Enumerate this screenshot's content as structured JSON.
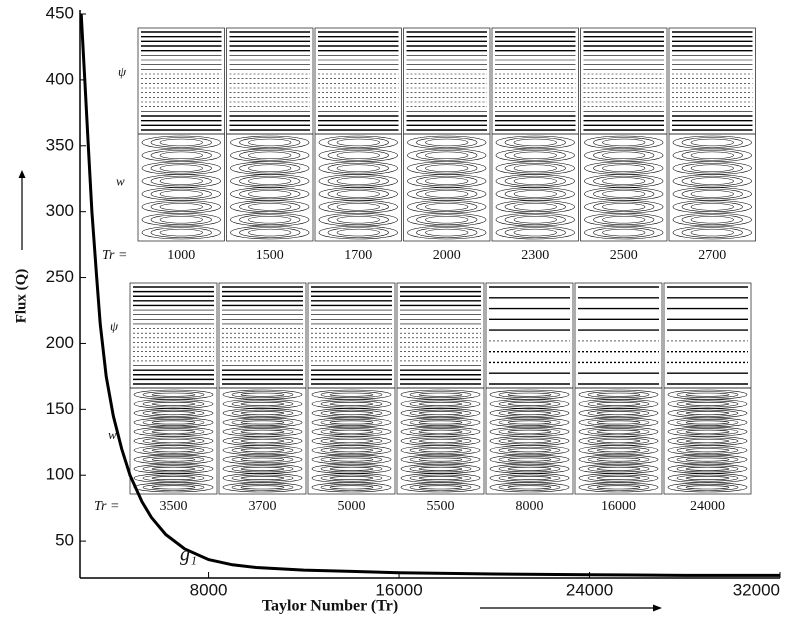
{
  "chart_data": {
    "type": "line",
    "x_label": "Taylor Number (Tr)",
    "y_label": "Flux (Q)",
    "annotation": "g₁",
    "x": [
      2650,
      2800,
      2950,
      3100,
      3300,
      3450,
      3700,
      4000,
      4350,
      4700,
      5200,
      5600,
      6200,
      7000,
      8000,
      9000,
      10000,
      12000,
      14000,
      16000,
      20000,
      24000,
      28000,
      32000
    ],
    "values": [
      450,
      400,
      350,
      300,
      250,
      215,
      175,
      145,
      120,
      100,
      80,
      68,
      55,
      44,
      36,
      32,
      30,
      28,
      27,
      26,
      25,
      24.5,
      24,
      24
    ],
    "color": "#000000",
    "xlim": [
      2600,
      32000
    ],
    "xticks": [
      8000,
      16000,
      24000,
      32000
    ],
    "ylim": [
      22,
      450
    ],
    "yticks": [
      50,
      100,
      150,
      200,
      250,
      300,
      350,
      400,
      450
    ],
    "insets": [
      {
        "psi_label": "ψ",
        "w_label": "w",
        "tr_label": "Tr =",
        "panels": [
          "1000",
          "1500",
          "1700",
          "2000",
          "2300",
          "2500",
          "2700"
        ]
      },
      {
        "psi_label": "ψ",
        "w_label": "w",
        "tr_label": "Tr =",
        "panels": [
          "3500",
          "3700",
          "5000",
          "5500",
          "8000",
          "16000",
          "24000"
        ]
      }
    ]
  }
}
